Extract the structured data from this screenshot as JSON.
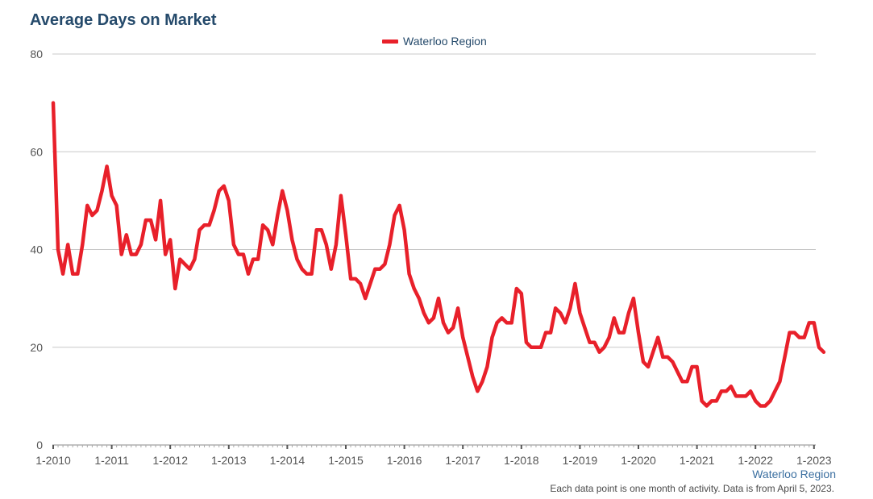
{
  "chart_data": {
    "type": "line",
    "title": "Average Days on Market",
    "xlabel": "",
    "ylabel": "",
    "ylim": [
      0,
      80
    ],
    "y_ticks": [
      0,
      20,
      40,
      60,
      80
    ],
    "x_ticks": [
      "1-2010",
      "1-2011",
      "1-2012",
      "1-2013",
      "1-2014",
      "1-2015",
      "1-2016",
      "1-2017",
      "1-2018",
      "1-2019",
      "1-2020",
      "1-2021",
      "1-2022",
      "1-2023"
    ],
    "grid": true,
    "legend_position": "top-center",
    "series": [
      {
        "name": "Waterloo Region",
        "color": "#e8202a",
        "start": "1-2010",
        "values": [
          70,
          40,
          35,
          41,
          35,
          35,
          41,
          49,
          47,
          48,
          52,
          57,
          51,
          49,
          39,
          43,
          39,
          39,
          41,
          46,
          46,
          42,
          50,
          39,
          42,
          32,
          38,
          37,
          36,
          38,
          44,
          45,
          45,
          48,
          52,
          53,
          50,
          41,
          39,
          39,
          35,
          38,
          38,
          45,
          44,
          41,
          47,
          52,
          48,
          42,
          38,
          36,
          35,
          35,
          44,
          44,
          41,
          36,
          41,
          51,
          43,
          34,
          34,
          33,
          30,
          33,
          36,
          36,
          37,
          41,
          47,
          49,
          44,
          35,
          32,
          30,
          27,
          25,
          26,
          30,
          25,
          23,
          24,
          28,
          22,
          18,
          14,
          11,
          13,
          16,
          22,
          25,
          26,
          25,
          25,
          32,
          31,
          21,
          20,
          20,
          20,
          23,
          23,
          28,
          27,
          25,
          28,
          33,
          27,
          24,
          21,
          21,
          19,
          20,
          22,
          26,
          23,
          23,
          27,
          30,
          23,
          17,
          16,
          19,
          22,
          18,
          18,
          17,
          15,
          13,
          13,
          16,
          16,
          9,
          8,
          9,
          9,
          11,
          11,
          12,
          10,
          10,
          10,
          11,
          9,
          8,
          8,
          9,
          11,
          13,
          18,
          23,
          23,
          22,
          22,
          25,
          25,
          20,
          19
        ]
      }
    ]
  },
  "source_label": "Waterloo Region",
  "footnote": "Each data point is one month of activity. Data is from April 5, 2023."
}
